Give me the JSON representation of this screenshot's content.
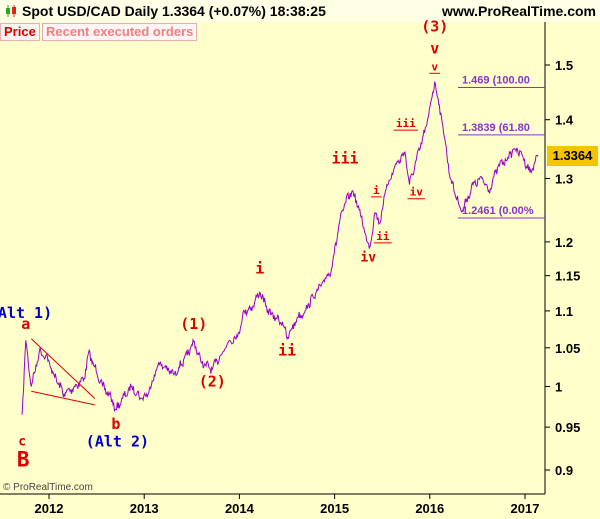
{
  "header": {
    "title": "Spot USD/CAD   Daily   1.3364 (+0.07%)   18:38:25",
    "site": "www.ProRealTime.com"
  },
  "tabs": [
    {
      "label": "Price"
    },
    {
      "label": "Recent executed orders"
    }
  ],
  "copyright": "© ProRealTime.com",
  "last_price_label": "1.3364",
  "colors": {
    "price_line": "#9900cc",
    "wave_red": "#dd0000",
    "wave_blue": "#0000cc",
    "fib": "#8833cc",
    "background": "#ffffcc"
  },
  "chart_data": {
    "type": "line",
    "xticks": [
      "2012",
      "2013",
      "2014",
      "2015",
      "2016",
      "2017"
    ],
    "yticks": [
      "1.5",
      "1.4",
      "1.3",
      "1.2",
      "1.15",
      "1.1",
      "1.05",
      "1",
      "0.95",
      "0.9"
    ],
    "ylim": [
      0.87,
      1.55
    ],
    "log_scale": true,
    "grid": false,
    "series": [
      {
        "values": [
          {
            "x": "2011-09-20",
            "y": 0.965
          },
          {
            "x": "2011-10-04",
            "y": 1.06
          },
          {
            "x": "2011-10-25",
            "y": 1.0
          },
          {
            "x": "2011-11-25",
            "y": 1.045
          },
          {
            "x": "2011-12-20",
            "y": 1.04
          },
          {
            "x": "2012-01-20",
            "y": 1.015
          },
          {
            "x": "2012-02-28",
            "y": 0.99
          },
          {
            "x": "2012-04-10",
            "y": 1.0
          },
          {
            "x": "2012-05-15",
            "y": 1.01
          },
          {
            "x": "2012-06-01",
            "y": 1.043
          },
          {
            "x": "2012-06-25",
            "y": 1.025
          },
          {
            "x": "2012-07-25",
            "y": 1.0
          },
          {
            "x": "2012-08-20",
            "y": 0.99
          },
          {
            "x": "2012-09-14",
            "y": 0.971
          },
          {
            "x": "2012-10-10",
            "y": 0.985
          },
          {
            "x": "2012-11-15",
            "y": 1.0
          },
          {
            "x": "2012-12-20",
            "y": 0.985
          },
          {
            "x": "2013-01-15",
            "y": 0.99
          },
          {
            "x": "2013-02-25",
            "y": 1.03
          },
          {
            "x": "2013-03-20",
            "y": 1.025
          },
          {
            "x": "2013-04-25",
            "y": 1.015
          },
          {
            "x": "2013-06-15",
            "y": 1.04
          },
          {
            "x": "2013-07-10",
            "y": 1.058
          },
          {
            "x": "2013-08-10",
            "y": 1.03
          },
          {
            "x": "2013-09-19",
            "y": 1.022
          },
          {
            "x": "2013-10-20",
            "y": 1.04
          },
          {
            "x": "2013-11-25",
            "y": 1.06
          },
          {
            "x": "2013-12-25",
            "y": 1.065
          },
          {
            "x": "2014-01-20",
            "y": 1.1
          },
          {
            "x": "2014-02-20",
            "y": 1.105
          },
          {
            "x": "2014-03-20",
            "y": 1.127
          },
          {
            "x": "2014-04-20",
            "y": 1.1
          },
          {
            "x": "2014-05-20",
            "y": 1.09
          },
          {
            "x": "2014-06-15",
            "y": 1.085
          },
          {
            "x": "2014-07-03",
            "y": 1.062
          },
          {
            "x": "2014-08-10",
            "y": 1.09
          },
          {
            "x": "2014-09-10",
            "y": 1.1
          },
          {
            "x": "2014-10-10",
            "y": 1.12
          },
          {
            "x": "2014-11-10",
            "y": 1.135
          },
          {
            "x": "2014-12-20",
            "y": 1.16
          },
          {
            "x": "2015-01-20",
            "y": 1.23
          },
          {
            "x": "2015-02-10",
            "y": 1.26
          },
          {
            "x": "2015-03-10",
            "y": 1.28
          },
          {
            "x": "2015-04-05",
            "y": 1.25
          },
          {
            "x": "2015-05-14",
            "y": 1.19
          },
          {
            "x": "2015-06-05",
            "y": 1.245
          },
          {
            "x": "2015-06-25",
            "y": 1.23
          },
          {
            "x": "2015-07-15",
            "y": 1.28
          },
          {
            "x": "2015-08-20",
            "y": 1.32
          },
          {
            "x": "2015-09-28",
            "y": 1.344
          },
          {
            "x": "2015-10-15",
            "y": 1.29
          },
          {
            "x": "2015-11-10",
            "y": 1.33
          },
          {
            "x": "2015-12-20",
            "y": 1.39
          },
          {
            "x": "2016-01-20",
            "y": 1.469
          },
          {
            "x": "2016-02-20",
            "y": 1.39
          },
          {
            "x": "2016-03-20",
            "y": 1.3
          },
          {
            "x": "2016-05-03",
            "y": 1.2461
          },
          {
            "x": "2016-06-15",
            "y": 1.29
          },
          {
            "x": "2016-07-20",
            "y": 1.3
          },
          {
            "x": "2016-08-15",
            "y": 1.28
          },
          {
            "x": "2016-09-20",
            "y": 1.32
          },
          {
            "x": "2016-10-20",
            "y": 1.33
          },
          {
            "x": "2016-11-20",
            "y": 1.35
          },
          {
            "x": "2016-12-20",
            "y": 1.34
          },
          {
            "x": "2017-01-20",
            "y": 1.31
          },
          {
            "x": "2017-02-20",
            "y": 1.3364
          }
        ]
      }
    ],
    "fib_levels": [
      {
        "label": "1.469 (100.00",
        "y": 1.469
      },
      {
        "label": "1.3839 (61.80",
        "y": 1.3839
      },
      {
        "label": "1.2461 (0.00%",
        "y": 1.2461
      }
    ],
    "annotations": [
      {
        "text": "(3)",
        "x": "2016-01-20",
        "y": 1.565,
        "color": "red",
        "size": 15
      },
      {
        "text": "v",
        "x": "2016-01-20",
        "y": 1.522,
        "color": "red",
        "size": 15
      },
      {
        "text": "v",
        "x": "2016-01-20",
        "y": 1.49,
        "color": "red",
        "size": 11,
        "underline": true
      },
      {
        "text": "iii",
        "x": "2015-10-01",
        "y": 1.387,
        "color": "red",
        "size": 11,
        "underline": true
      },
      {
        "text": "iv",
        "x": "2015-11-10",
        "y": 1.272,
        "color": "red",
        "size": 11,
        "underline": true
      },
      {
        "text": "iii",
        "x": "2015-02-10",
        "y": 1.325,
        "color": "red",
        "size": 15
      },
      {
        "text": "i",
        "x": "2015-06-10",
        "y": 1.275,
        "color": "red",
        "size": 11,
        "underline": true
      },
      {
        "text": "ii",
        "x": "2015-07-05",
        "y": 1.203,
        "color": "red",
        "size": 11,
        "underline": true
      },
      {
        "text": "iv",
        "x": "2015-05-10",
        "y": 1.171,
        "color": "red",
        "size": 13
      },
      {
        "text": "i",
        "x": "2014-03-20",
        "y": 1.153,
        "color": "red",
        "size": 15
      },
      {
        "text": "ii",
        "x": "2014-07-03",
        "y": 1.04,
        "color": "red",
        "size": 15
      },
      {
        "text": "(1)",
        "x": "2013-07-10",
        "y": 1.075,
        "color": "red",
        "size": 15
      },
      {
        "text": "(2)",
        "x": "2013-09-19",
        "y": 1.0,
        "color": "red",
        "size": 15
      },
      {
        "text": "a",
        "x": "2011-10-04",
        "y": 1.075,
        "color": "red",
        "size": 15
      },
      {
        "text": "b",
        "x": "2012-09-14",
        "y": 0.948,
        "color": "red",
        "size": 15
      },
      {
        "text": "c",
        "x": "2011-09-20",
        "y": 0.928,
        "color": "red",
        "size": 13
      },
      {
        "text": "B",
        "x": "2011-09-24",
        "y": 0.904,
        "color": "red",
        "size": 21
      },
      {
        "text": "Alt 1)",
        "x": "2011-10-01",
        "y": 1.09,
        "color": "blue",
        "size": 15
      },
      {
        "text": "(Alt 2)",
        "x": "2012-09-20",
        "y": 0.927,
        "color": "blue",
        "size": 15
      }
    ],
    "channel_lines": [
      {
        "x1": "2011-10-25",
        "y1": 1.062,
        "x2": "2012-06-25",
        "y2": 0.985
      },
      {
        "x1": "2011-10-25",
        "y1": 0.994,
        "x2": "2012-06-25",
        "y2": 0.977
      }
    ]
  }
}
